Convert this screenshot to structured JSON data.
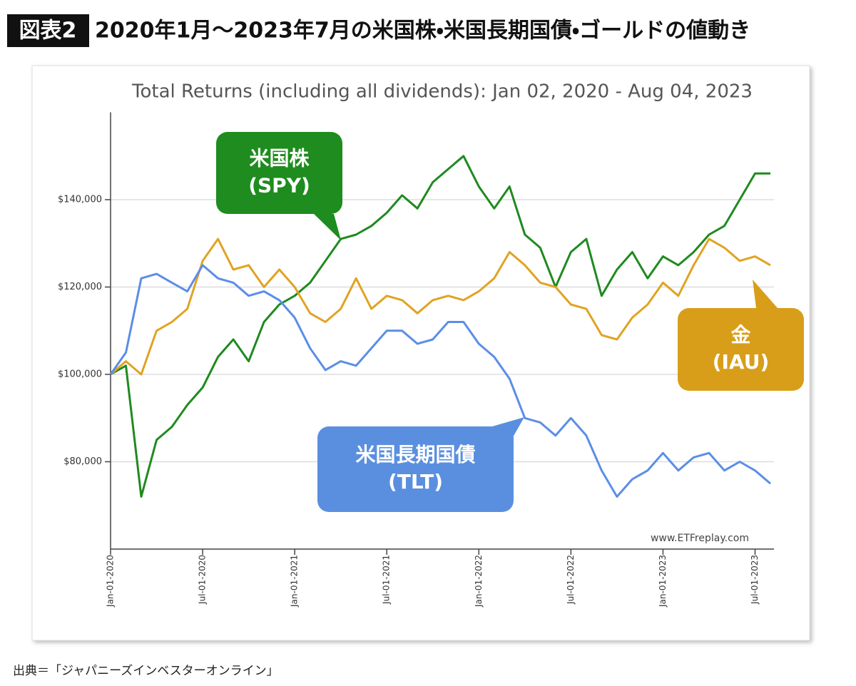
{
  "header": {
    "label": "図表2",
    "title": "2020年1月～2023年7月の米国株・米国長期国債・ゴールドの値動き"
  },
  "source": "出典＝「ジャパニーズインベスターオンライン」",
  "chart_data": {
    "type": "line",
    "title": "Total Returns (including all dividends): Jan 02, 2020 - Aug 04, 2023",
    "watermark": "www.ETFreplay.com",
    "x": [
      "2020-01",
      "2020-02",
      "2020-03",
      "2020-04",
      "2020-05",
      "2020-06",
      "2020-07",
      "2020-08",
      "2020-09",
      "2020-10",
      "2020-11",
      "2020-12",
      "2021-01",
      "2021-02",
      "2021-03",
      "2021-04",
      "2021-05",
      "2021-06",
      "2021-07",
      "2021-08",
      "2021-09",
      "2021-10",
      "2021-11",
      "2021-12",
      "2022-01",
      "2022-02",
      "2022-03",
      "2022-04",
      "2022-05",
      "2022-06",
      "2022-07",
      "2022-08",
      "2022-09",
      "2022-10",
      "2022-11",
      "2022-12",
      "2023-01",
      "2023-02",
      "2023-03",
      "2023-04",
      "2023-05",
      "2023-06",
      "2023-07",
      "2023-08"
    ],
    "xlim": [
      "2020-01",
      "2023-08"
    ],
    "xticks": [
      {
        "value": "2020-01",
        "label": "Jan-01-2020"
      },
      {
        "value": "2020-07",
        "label": "Jul-01-2020"
      },
      {
        "value": "2021-01",
        "label": "Jan-01-2021"
      },
      {
        "value": "2021-07",
        "label": "Jul-01-2021"
      },
      {
        "value": "2022-01",
        "label": "Jan-01-2022"
      },
      {
        "value": "2022-07",
        "label": "Jul-01-2022"
      },
      {
        "value": "2023-01",
        "label": "Jan-01-2023"
      },
      {
        "value": "2023-07",
        "label": "Jul-01-2023"
      }
    ],
    "ylim": [
      60000,
      160000
    ],
    "yticks": [
      {
        "value": 80000,
        "label": "$80,000"
      },
      {
        "value": 100000,
        "label": "$100,000"
      },
      {
        "value": 120000,
        "label": "$120,000"
      },
      {
        "value": 140000,
        "label": "$140,000"
      }
    ],
    "grid": true,
    "series": [
      {
        "name": "米国株 (SPY)",
        "color": "#1f8a1f",
        "values": [
          100000,
          102000,
          72000,
          85000,
          88000,
          93000,
          97000,
          104000,
          108000,
          103000,
          112000,
          116000,
          118000,
          121000,
          126000,
          131000,
          132000,
          134000,
          137000,
          141000,
          138000,
          144000,
          147000,
          150000,
          143000,
          138000,
          143000,
          132000,
          129000,
          120000,
          128000,
          131000,
          118000,
          124000,
          128000,
          122000,
          127000,
          125000,
          128000,
          132000,
          134000,
          140000,
          146000,
          146000
        ]
      },
      {
        "name": "金 (IAU)",
        "color": "#e0a323",
        "values": [
          100000,
          103000,
          100000,
          110000,
          112000,
          115000,
          126000,
          131000,
          124000,
          125000,
          120000,
          124000,
          120000,
          114000,
          112000,
          115000,
          122000,
          115000,
          118000,
          117000,
          114000,
          117000,
          118000,
          117000,
          119000,
          122000,
          128000,
          125000,
          121000,
          120000,
          116000,
          115000,
          109000,
          108000,
          113000,
          116000,
          121000,
          118000,
          125000,
          131000,
          129000,
          126000,
          127000,
          125000
        ]
      },
      {
        "name": "米国長期国債 (TLT)",
        "color": "#5b8ee6",
        "values": [
          100000,
          105000,
          122000,
          123000,
          121000,
          119000,
          125000,
          122000,
          121000,
          118000,
          119000,
          117000,
          113000,
          106000,
          101000,
          103000,
          102000,
          106000,
          110000,
          110000,
          107000,
          108000,
          112000,
          112000,
          107000,
          104000,
          99000,
          90000,
          89000,
          86000,
          90000,
          86000,
          78000,
          72000,
          76000,
          78000,
          82000,
          78000,
          81000,
          82000,
          78000,
          80000,
          78000,
          75000
        ]
      }
    ],
    "annotations": [
      {
        "lines": [
          "米国株",
          "(SPY)"
        ],
        "color": "#1e8c1e"
      },
      {
        "lines": [
          "金",
          "(IAU)"
        ],
        "color": "#d89e1a"
      },
      {
        "lines": [
          "米国長期国債",
          "(TLT)"
        ],
        "color": "#5a8fe0"
      }
    ]
  }
}
